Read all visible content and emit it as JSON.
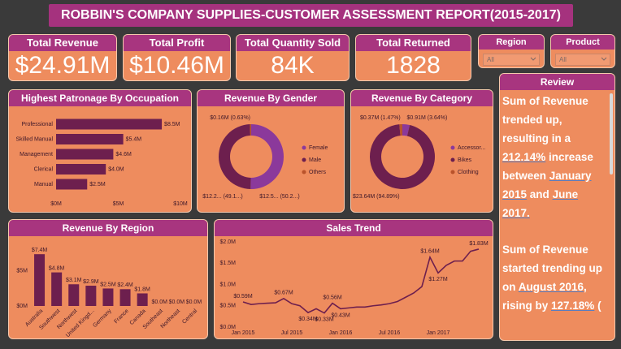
{
  "header": {
    "title": "ROBBIN'S COMPANY SUPPLIES-CUSTOMER ASSESSMENT REPORT(2015-2017)"
  },
  "kpis": [
    {
      "label": "Total Revenue",
      "value": "$24.91M"
    },
    {
      "label": "Total Profit",
      "value": "$10.46M"
    },
    {
      "label": "Total Quantity Sold",
      "value": "84K"
    },
    {
      "label": "Total Returned",
      "value": "1828"
    }
  ],
  "slicers": [
    {
      "label": "Region",
      "value": "All"
    },
    {
      "label": "Product",
      "value": "All"
    }
  ],
  "review": {
    "title": "Review",
    "paragraphs": [
      [
        {
          "text": "Sum of Revenue trended up, resulting in a "
        },
        {
          "text": "212.14%",
          "underline": true
        },
        {
          "text": " increase between "
        },
        {
          "text": "January 2015",
          "underline": true
        },
        {
          "text": " and "
        },
        {
          "text": "June 2017.",
          "underline": true
        }
      ],
      [
        {
          "text": "Sum of Revenue started trending up on "
        },
        {
          "text": "August 2016,",
          "underline": true
        },
        {
          "text": " rising by "
        },
        {
          "text": "127.18%",
          "underline": true
        },
        {
          "text": " ("
        }
      ]
    ]
  },
  "chart_data": [
    {
      "type": "bar",
      "orientation": "horizontal",
      "title": "Highest Patronage By Occupation",
      "categories": [
        "Professional",
        "Skilled Manual",
        "Management",
        "Clerical",
        "Manual"
      ],
      "values": [
        8.5,
        5.4,
        4.6,
        4.0,
        2.5
      ],
      "value_labels": [
        "$8.5M",
        "$5.4M",
        "$4.6M",
        "$4.0M",
        "$2.5M"
      ],
      "color": "#6d1f4e",
      "xlim": [
        0,
        10
      ],
      "xticks": [
        {
          "value": 0,
          "label": "$0M"
        },
        {
          "value": 5,
          "label": "$5M"
        },
        {
          "value": 10,
          "label": "$10M"
        }
      ]
    },
    {
      "type": "pie",
      "donut": true,
      "title": "Revenue By Gender",
      "categories": [
        "Female",
        "Male",
        "Others"
      ],
      "values": [
        12.5,
        12.2,
        0.16
      ],
      "value_labels": [
        "$12.5... (50.2...)",
        "$12.2... (49.1...)",
        "$0.16M (0.63%)"
      ],
      "colors": [
        "#8b399b",
        "#6d1f4e",
        "#b9532b"
      ],
      "legend": "right"
    },
    {
      "type": "pie",
      "donut": true,
      "title": "Revenue By Category",
      "categories": [
        "Accessor...",
        "Bikes",
        "Clothing"
      ],
      "values": [
        0.91,
        23.64,
        0.37
      ],
      "value_labels": [
        "$0.91M (3.64%)",
        "$23.64M (94.89%)",
        "$0.37M (1.47%)"
      ],
      "colors": [
        "#8b399b",
        "#6d1f4e",
        "#b9532b"
      ],
      "legend": "right"
    },
    {
      "type": "bar",
      "title": "Revenue By Region",
      "categories": [
        "Australia",
        "Southwest",
        "Northwest",
        "United Kingd...",
        "Germany",
        "France",
        "Canada",
        "Southeast",
        "Northeast",
        "Central"
      ],
      "values": [
        7.4,
        4.8,
        3.1,
        2.9,
        2.5,
        2.4,
        1.8,
        0.0,
        0.0,
        0.0
      ],
      "value_labels": [
        "$7.4M",
        "$4.8M",
        "$3.1M",
        "$2.9M",
        "$2.5M",
        "$2.4M",
        "$1.8M",
        "$0.0M",
        "$0.0M",
        "$0.0M"
      ],
      "color": "#6d1f4e",
      "ylim": [
        0,
        8
      ],
      "yticks": [
        {
          "value": 0,
          "label": "$0M"
        },
        {
          "value": 5,
          "label": "$5M"
        }
      ]
    },
    {
      "type": "line",
      "title": "Sales Trend",
      "categories": [
        "Jan 2015",
        null,
        null,
        null,
        null,
        null,
        "Jul 2015",
        null,
        null,
        null,
        null,
        null,
        "Jan 2016",
        null,
        null,
        null,
        null,
        null,
        "Jul 2016",
        null,
        null,
        null,
        null,
        null,
        "Jan 2017",
        null,
        null,
        null,
        null,
        null
      ],
      "values": [
        0.59,
        0.53,
        0.55,
        0.56,
        0.57,
        0.67,
        0.55,
        0.5,
        0.34,
        0.43,
        0.33,
        0.56,
        0.43,
        0.45,
        0.47,
        0.47,
        0.5,
        0.52,
        0.55,
        0.6,
        0.7,
        0.8,
        0.95,
        1.64,
        1.27,
        1.45,
        1.55,
        1.55,
        1.78,
        1.83
      ],
      "value_labels": [
        "$0.59M",
        null,
        null,
        null,
        null,
        "$0.67M",
        null,
        null,
        "$0.34M",
        null,
        "$0.33M",
        "$0.56M",
        "$0.43M",
        null,
        null,
        null,
        null,
        null,
        null,
        null,
        null,
        null,
        null,
        "$1.64M",
        "$1.27M",
        null,
        null,
        null,
        null,
        "$1.83M"
      ],
      "color": "#6d1f4e",
      "ylim": [
        0,
        2
      ],
      "yticks": [
        {
          "value": 0,
          "label": "$0.0M"
        },
        {
          "value": 0.5,
          "label": "$0.5M"
        },
        {
          "value": 1,
          "label": "$1.0M"
        },
        {
          "value": 1.5,
          "label": "$1.5M"
        },
        {
          "value": 2,
          "label": "$2.0M"
        }
      ]
    }
  ]
}
